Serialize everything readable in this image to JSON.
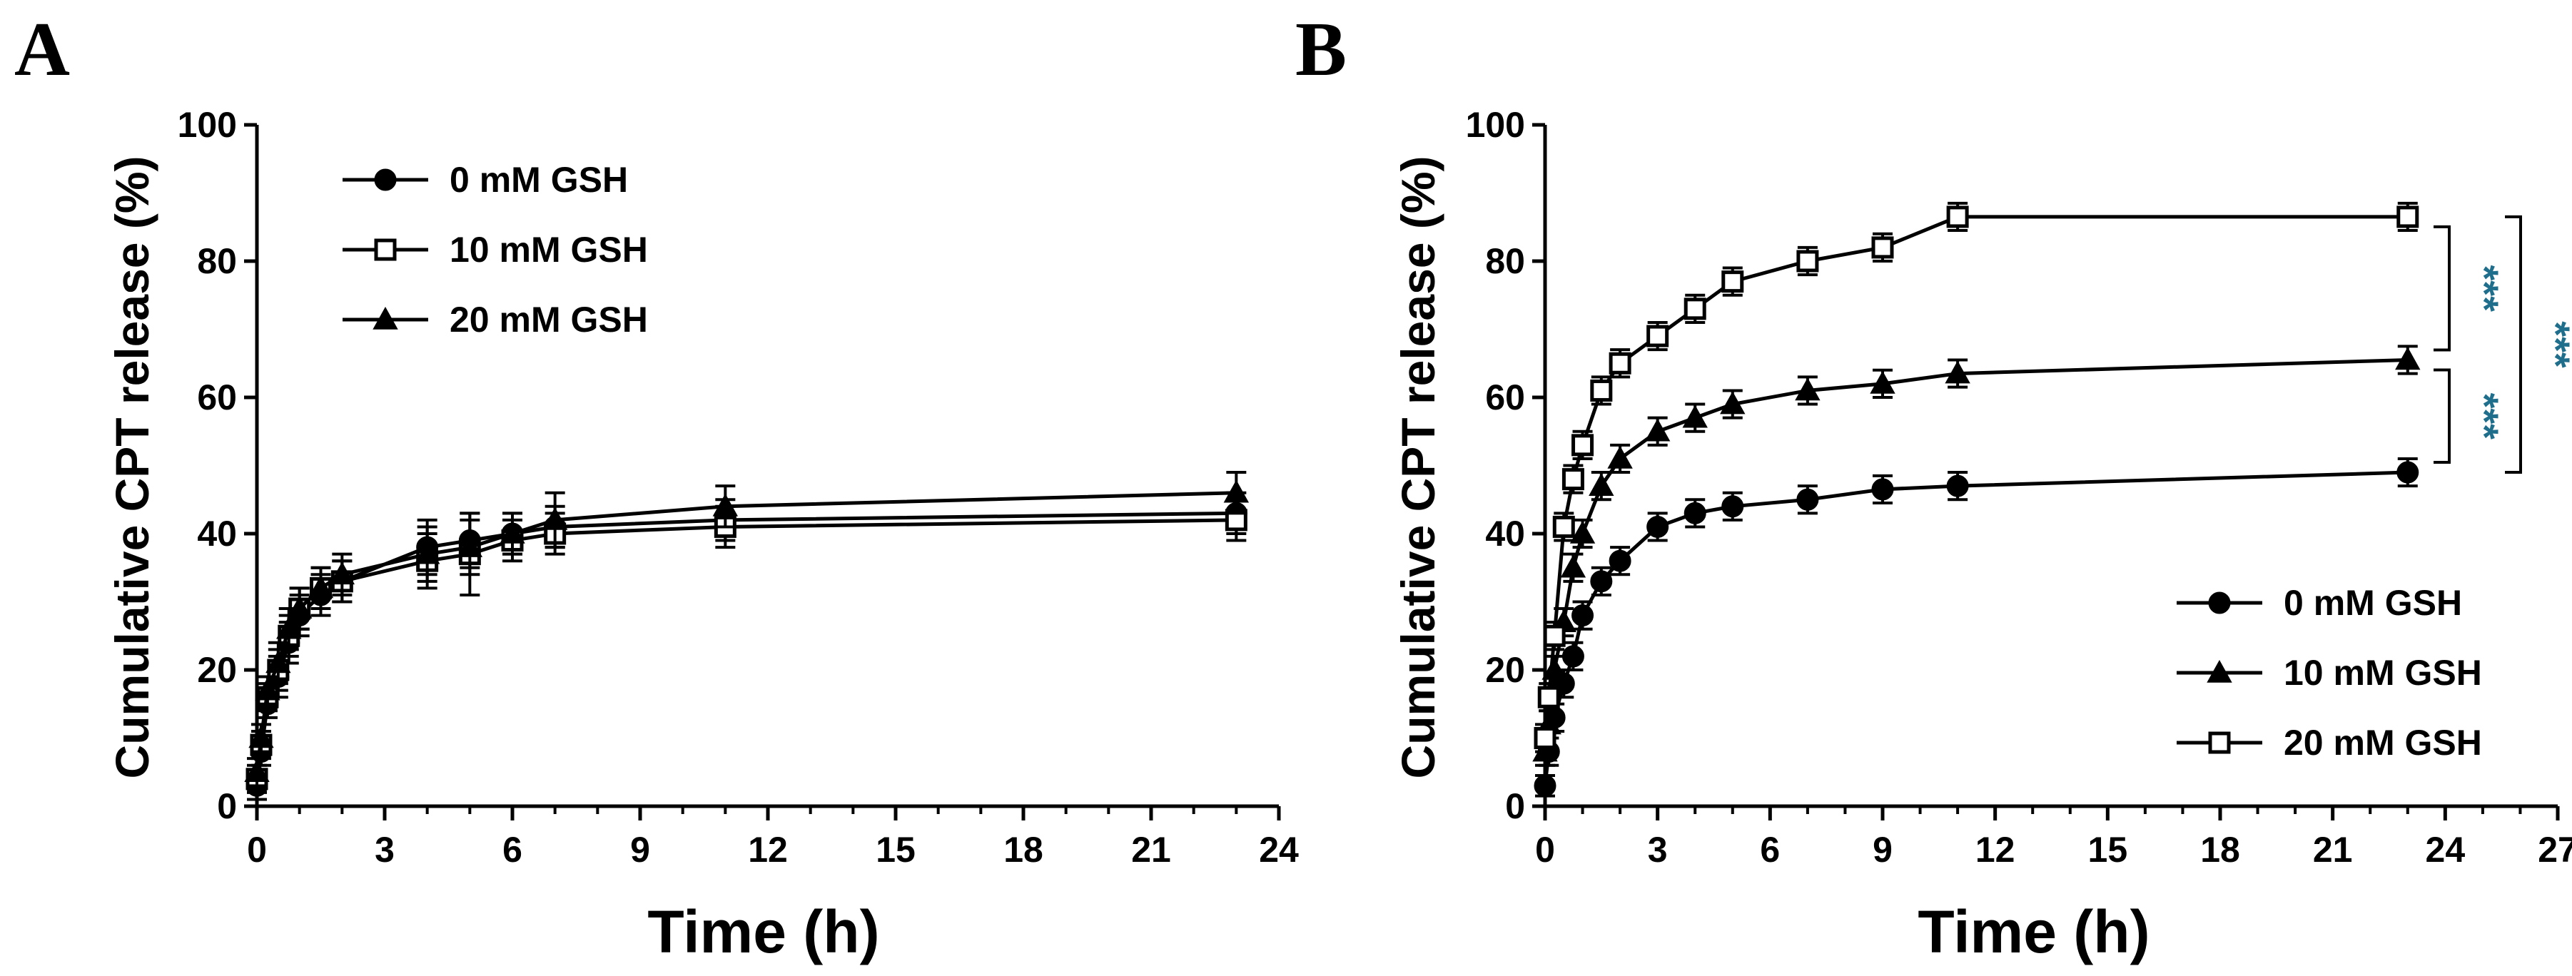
{
  "chart_data": [
    {
      "panel": "A",
      "type": "line",
      "xlabel": "Time (h)",
      "ylabel": "Cumulative CPT release (%)",
      "xlim": [
        0,
        24
      ],
      "ylim": [
        0,
        100
      ],
      "xticks": [
        0,
        3,
        6,
        9,
        12,
        15,
        18,
        21,
        24
      ],
      "yticks": [
        0,
        20,
        40,
        60,
        80,
        100
      ],
      "legend_position": "top-left",
      "series": [
        {
          "name": "0 mM GSH",
          "marker": "circle",
          "x": [
            0,
            0.1,
            0.25,
            0.5,
            0.75,
            1,
            1.5,
            2,
            4,
            5,
            6,
            7,
            11,
            23
          ],
          "y": [
            3,
            8,
            15,
            19,
            24,
            28,
            31,
            33,
            38,
            39,
            40,
            41,
            42,
            43
          ],
          "err": [
            2,
            2,
            2,
            3,
            3,
            3,
            3,
            3,
            4,
            4,
            3,
            3,
            3,
            3
          ]
        },
        {
          "name": "10 mM GSH",
          "marker": "square-open",
          "x": [
            0,
            0.1,
            0.25,
            0.5,
            0.75,
            1,
            1.5,
            2,
            4,
            5,
            6,
            7,
            11,
            23
          ],
          "y": [
            4,
            9,
            16,
            20,
            25,
            29,
            32,
            33,
            36,
            37,
            39,
            40,
            41,
            42
          ],
          "err": [
            2,
            2,
            2,
            3,
            3,
            3,
            3,
            3,
            4,
            6,
            3,
            3,
            3,
            3
          ]
        },
        {
          "name": "20 mM GSH",
          "marker": "triangle",
          "x": [
            0,
            0.1,
            0.25,
            0.5,
            0.75,
            1,
            1.5,
            2,
            4,
            5,
            6,
            7,
            11,
            23
          ],
          "y": [
            5,
            10,
            17,
            21,
            26,
            29,
            32,
            34,
            37,
            38,
            40,
            42,
            44,
            46
          ],
          "err": [
            2,
            2,
            2,
            3,
            3,
            3,
            3,
            3,
            4,
            4,
            3,
            4,
            3,
            3
          ]
        }
      ]
    },
    {
      "panel": "B",
      "type": "line",
      "xlabel": "Time (h)",
      "ylabel": "Cumulative CPT release (%)",
      "xlim": [
        0,
        27
      ],
      "ylim": [
        0,
        100
      ],
      "xticks": [
        0,
        3,
        6,
        9,
        12,
        15,
        18,
        21,
        24,
        27
      ],
      "yticks": [
        0,
        20,
        40,
        60,
        80,
        100
      ],
      "legend_position": "bottom-right",
      "series": [
        {
          "name": "0 mM GSH",
          "marker": "circle",
          "x": [
            0,
            0.1,
            0.25,
            0.5,
            0.75,
            1,
            1.5,
            2,
            3,
            4,
            5,
            7,
            9,
            11,
            23
          ],
          "y": [
            3,
            8,
            13,
            18,
            22,
            28,
            33,
            36,
            41,
            43,
            44,
            45,
            46.5,
            47,
            49
          ],
          "err": [
            1.5,
            2,
            2,
            2,
            2,
            2,
            2,
            2,
            2,
            2,
            2,
            2,
            2,
            2,
            2
          ]
        },
        {
          "name": "10 mM GSH",
          "marker": "triangle",
          "x": [
            0,
            0.1,
            0.25,
            0.5,
            0.75,
            1,
            1.5,
            2,
            3,
            4,
            5,
            7,
            9,
            11,
            23
          ],
          "y": [
            8,
            12,
            20,
            27,
            35,
            40,
            47,
            51,
            55,
            57,
            59,
            61,
            62,
            63.5,
            65.5
          ],
          "err": [
            2,
            2,
            2,
            2,
            2,
            2,
            2,
            2,
            2,
            2,
            2,
            2,
            2,
            2,
            2
          ]
        },
        {
          "name": "20 mM GSH",
          "marker": "square-open",
          "x": [
            0,
            0.1,
            0.25,
            0.5,
            0.75,
            1,
            1.5,
            2,
            3,
            4,
            5,
            7,
            9,
            11,
            23
          ],
          "y": [
            10,
            16,
            25,
            41,
            48,
            53,
            61,
            65,
            69,
            73,
            77,
            80,
            82,
            86.5,
            86.5
          ],
          "err": [
            2,
            2,
            2,
            2,
            2,
            2,
            2,
            2,
            2,
            2,
            2,
            2,
            2,
            2,
            2
          ]
        }
      ],
      "significance": [
        {
          "between": [
            "20 mM GSH",
            "10 mM GSH"
          ],
          "label": "***"
        },
        {
          "between": [
            "10 mM GSH",
            "0 mM GSH"
          ],
          "label": "***"
        },
        {
          "between": [
            "20 mM GSH",
            "0 mM GSH"
          ],
          "label": "***"
        }
      ]
    }
  ]
}
